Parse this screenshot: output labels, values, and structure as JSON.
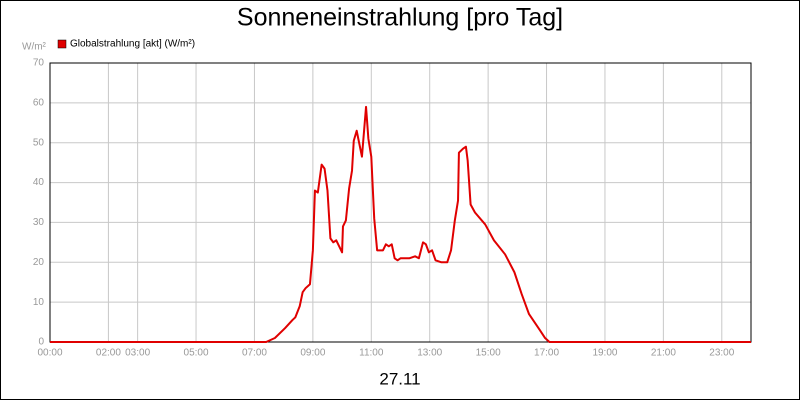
{
  "chart_data": {
    "type": "line",
    "title": "Sonneneinstrahlung [pro Tag]",
    "y_unit": "W/m²",
    "x_label": "27.11",
    "xlim": [
      0,
      24
    ],
    "ylim": [
      0,
      70
    ],
    "yticks": [
      0,
      10,
      20,
      30,
      40,
      50,
      60,
      70
    ],
    "xticks": [
      {
        "value": 0,
        "label": "00:00"
      },
      {
        "value": 2,
        "label": "02:00"
      },
      {
        "value": 3,
        "label": "03:00"
      },
      {
        "value": 5,
        "label": "05:00"
      },
      {
        "value": 7,
        "label": "07:00"
      },
      {
        "value": 9,
        "label": "09:00"
      },
      {
        "value": 11,
        "label": "11:00"
      },
      {
        "value": 13,
        "label": "13:00"
      },
      {
        "value": 15,
        "label": "15:00"
      },
      {
        "value": 17,
        "label": "17:00"
      },
      {
        "value": 19,
        "label": "19:00"
      },
      {
        "value": 21,
        "label": "21:00"
      },
      {
        "value": 23,
        "label": "23:00"
      }
    ],
    "grid": true,
    "x": [
      0,
      7.4,
      7.7,
      8.05,
      8.3,
      8.4,
      8.55,
      8.65,
      8.75,
      8.9,
      9.0,
      9.07,
      9.17,
      9.3,
      9.4,
      9.5,
      9.6,
      9.7,
      9.8,
      9.9,
      10.0,
      10.03,
      10.13,
      10.24,
      10.34,
      10.4,
      10.5,
      10.68,
      10.82,
      10.9,
      11.0,
      11.1,
      11.2,
      11.4,
      11.5,
      11.6,
      11.7,
      11.8,
      11.9,
      12.0,
      12.3,
      12.5,
      12.63,
      12.77,
      12.87,
      12.97,
      13.08,
      13.2,
      13.4,
      13.6,
      13.73,
      13.86,
      13.97,
      14.0,
      14.14,
      14.24,
      14.3,
      14.4,
      14.55,
      14.9,
      15.2,
      15.58,
      15.9,
      16.15,
      16.4,
      16.77,
      16.95,
      17.1,
      24
    ],
    "series": [
      {
        "name": "Globalstrahlung [akt] (W/m²)",
        "color": "#e00000",
        "values": [
          0,
          0,
          1,
          3.5,
          5.5,
          6.2,
          9,
          12.5,
          13.5,
          14.5,
          23,
          38,
          37.5,
          44.5,
          43.5,
          38,
          26,
          25,
          25.5,
          24,
          22.5,
          29,
          30.5,
          38.5,
          43,
          50.5,
          53,
          46.5,
          59,
          51,
          46.5,
          31,
          23,
          23,
          24.5,
          24,
          24.5,
          21,
          20.5,
          21,
          21,
          21.5,
          21,
          25,
          24.5,
          22.5,
          23,
          20.5,
          20,
          20,
          23,
          30.5,
          35.5,
          47.5,
          48.5,
          49,
          45.5,
          34.5,
          32.5,
          29.5,
          25.5,
          22,
          17.5,
          12,
          7,
          3,
          1,
          0,
          0
        ]
      }
    ]
  }
}
